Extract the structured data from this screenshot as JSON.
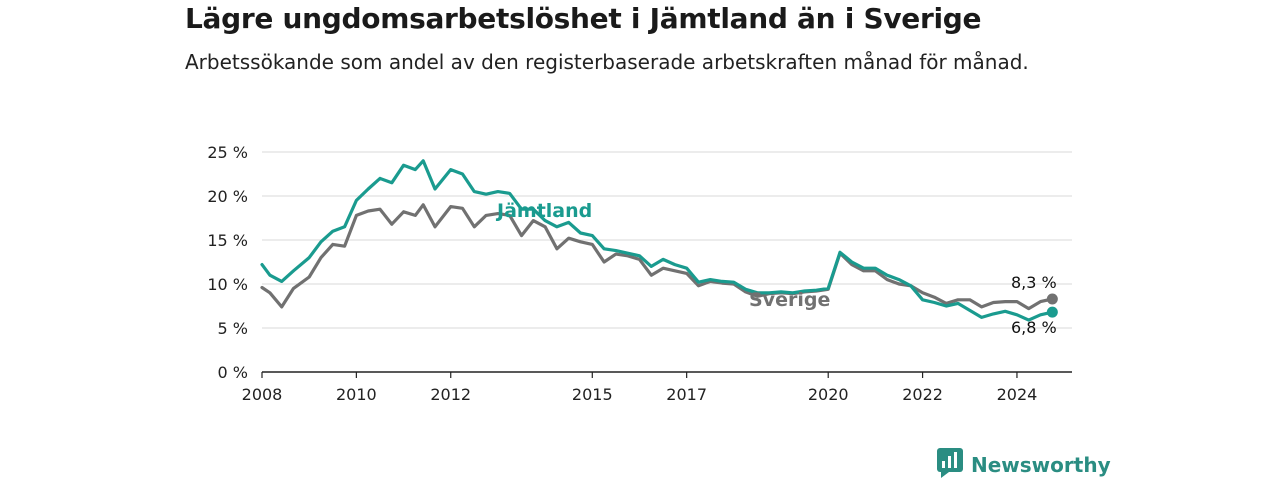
{
  "header": {
    "title": "Lägre ungdomsarbetslöshet i Jämtland än i Sverige",
    "subtitle": "Arbetssökande som andel av den registerbaserade arbetskraften månad för månad."
  },
  "brand": {
    "name": "Newsworthy",
    "icon": "newsworthy-logo-icon"
  },
  "colors": {
    "jamtland": "#1a9b8f",
    "sverige": "#717171",
    "grid": "#d9d9d9",
    "axis": "#222222"
  },
  "chart_data": {
    "type": "line",
    "title": "Lägre ungdomsarbetslöshet i Jämtland än i Sverige",
    "subtitle": "Arbetssökande som andel av den registerbaserade arbetskraften månad för månad.",
    "xlabel": "",
    "ylabel": "",
    "xlim": [
      "2008-01",
      "2025-03"
    ],
    "ylim": [
      0,
      25
    ],
    "y_ticks": [
      0,
      5,
      10,
      15,
      20,
      25
    ],
    "y_tick_labels": [
      "0 %",
      "5 %",
      "10 %",
      "15 %",
      "20 %",
      "25 %"
    ],
    "x_ticks": [
      "2008-01",
      "2010-01",
      "2012-01",
      "2015-01",
      "2017-01",
      "2020-01",
      "2022-01",
      "2024-01"
    ],
    "x_tick_labels": [
      "2008",
      "2010",
      "2012",
      "2015",
      "2017",
      "2020",
      "2022",
      "2024"
    ],
    "grid": "horizontal",
    "series": [
      {
        "name": "Jämtland",
        "end_label": "6,8 %",
        "points": [
          [
            "2008-01",
            12.2
          ],
          [
            "2008-03",
            11.0
          ],
          [
            "2008-06",
            10.3
          ],
          [
            "2008-09",
            11.5
          ],
          [
            "2009-01",
            13.0
          ],
          [
            "2009-04",
            14.8
          ],
          [
            "2009-07",
            16.0
          ],
          [
            "2009-10",
            16.5
          ],
          [
            "2010-01",
            19.5
          ],
          [
            "2010-04",
            20.8
          ],
          [
            "2010-07",
            22.0
          ],
          [
            "2010-10",
            21.5
          ],
          [
            "2011-01",
            23.5
          ],
          [
            "2011-04",
            23.0
          ],
          [
            "2011-06",
            24.0
          ],
          [
            "2011-09",
            20.8
          ],
          [
            "2012-01",
            23.0
          ],
          [
            "2012-04",
            22.5
          ],
          [
            "2012-07",
            20.5
          ],
          [
            "2012-10",
            20.2
          ],
          [
            "2013-01",
            20.5
          ],
          [
            "2013-04",
            20.3
          ],
          [
            "2013-07",
            18.5
          ],
          [
            "2013-10",
            18.5
          ],
          [
            "2014-01",
            17.2
          ],
          [
            "2014-04",
            16.5
          ],
          [
            "2014-07",
            17.0
          ],
          [
            "2014-10",
            15.8
          ],
          [
            "2015-01",
            15.5
          ],
          [
            "2015-04",
            14.0
          ],
          [
            "2015-07",
            13.8
          ],
          [
            "2015-10",
            13.5
          ],
          [
            "2016-01",
            13.2
          ],
          [
            "2016-04",
            12.0
          ],
          [
            "2016-07",
            12.8
          ],
          [
            "2016-10",
            12.2
          ],
          [
            "2017-01",
            11.8
          ],
          [
            "2017-04",
            10.2
          ],
          [
            "2017-07",
            10.5
          ],
          [
            "2017-10",
            10.3
          ],
          [
            "2018-01",
            10.2
          ],
          [
            "2018-04",
            9.4
          ],
          [
            "2018-07",
            9.0
          ],
          [
            "2018-10",
            9.0
          ],
          [
            "2019-01",
            9.1
          ],
          [
            "2019-04",
            9.0
          ],
          [
            "2019-07",
            9.2
          ],
          [
            "2019-10",
            9.3
          ],
          [
            "2020-01",
            9.5
          ],
          [
            "2020-04",
            13.6
          ],
          [
            "2020-07",
            12.5
          ],
          [
            "2020-10",
            11.8
          ],
          [
            "2021-01",
            11.8
          ],
          [
            "2021-04",
            11.0
          ],
          [
            "2021-07",
            10.5
          ],
          [
            "2021-10",
            9.8
          ],
          [
            "2022-01",
            8.2
          ],
          [
            "2022-04",
            7.9
          ],
          [
            "2022-07",
            7.5
          ],
          [
            "2022-10",
            7.8
          ],
          [
            "2023-01",
            7.0
          ],
          [
            "2023-04",
            6.2
          ],
          [
            "2023-07",
            6.6
          ],
          [
            "2023-10",
            6.9
          ],
          [
            "2024-01",
            6.5
          ],
          [
            "2024-04",
            5.9
          ],
          [
            "2024-07",
            6.5
          ],
          [
            "2024-10",
            6.8
          ]
        ]
      },
      {
        "name": "Sverige",
        "end_label": "8,3 %",
        "points": [
          [
            "2008-01",
            9.6
          ],
          [
            "2008-03",
            9.0
          ],
          [
            "2008-06",
            7.4
          ],
          [
            "2008-09",
            9.5
          ],
          [
            "2009-01",
            10.8
          ],
          [
            "2009-04",
            13.0
          ],
          [
            "2009-07",
            14.5
          ],
          [
            "2009-10",
            14.3
          ],
          [
            "2010-01",
            17.8
          ],
          [
            "2010-04",
            18.3
          ],
          [
            "2010-07",
            18.5
          ],
          [
            "2010-10",
            16.8
          ],
          [
            "2011-01",
            18.2
          ],
          [
            "2011-04",
            17.8
          ],
          [
            "2011-06",
            19.0
          ],
          [
            "2011-09",
            16.5
          ],
          [
            "2012-01",
            18.8
          ],
          [
            "2012-04",
            18.6
          ],
          [
            "2012-07",
            16.5
          ],
          [
            "2012-10",
            17.8
          ],
          [
            "2013-01",
            18.0
          ],
          [
            "2013-04",
            17.8
          ],
          [
            "2013-07",
            15.5
          ],
          [
            "2013-10",
            17.2
          ],
          [
            "2014-01",
            16.5
          ],
          [
            "2014-04",
            14.0
          ],
          [
            "2014-07",
            15.2
          ],
          [
            "2014-10",
            14.8
          ],
          [
            "2015-01",
            14.5
          ],
          [
            "2015-04",
            12.5
          ],
          [
            "2015-07",
            13.4
          ],
          [
            "2015-10",
            13.2
          ],
          [
            "2016-01",
            12.8
          ],
          [
            "2016-04",
            11.0
          ],
          [
            "2016-07",
            11.8
          ],
          [
            "2016-10",
            11.5
          ],
          [
            "2017-01",
            11.2
          ],
          [
            "2017-04",
            9.8
          ],
          [
            "2017-07",
            10.3
          ],
          [
            "2017-10",
            10.1
          ],
          [
            "2018-01",
            10.0
          ],
          [
            "2018-04",
            9.1
          ],
          [
            "2018-07",
            8.6
          ],
          [
            "2018-10",
            8.9
          ],
          [
            "2019-01",
            9.0
          ],
          [
            "2019-04",
            8.9
          ],
          [
            "2019-07",
            9.1
          ],
          [
            "2019-10",
            9.2
          ],
          [
            "2020-01",
            9.4
          ],
          [
            "2020-04",
            13.5
          ],
          [
            "2020-07",
            12.2
          ],
          [
            "2020-10",
            11.5
          ],
          [
            "2021-01",
            11.5
          ],
          [
            "2021-04",
            10.5
          ],
          [
            "2021-07",
            10.0
          ],
          [
            "2021-10",
            9.8
          ],
          [
            "2022-01",
            9.0
          ],
          [
            "2022-04",
            8.5
          ],
          [
            "2022-07",
            7.8
          ],
          [
            "2022-10",
            8.2
          ],
          [
            "2023-01",
            8.2
          ],
          [
            "2023-04",
            7.4
          ],
          [
            "2023-07",
            7.9
          ],
          [
            "2023-10",
            8.0
          ],
          [
            "2024-01",
            8.0
          ],
          [
            "2024-04",
            7.2
          ],
          [
            "2024-07",
            8.0
          ],
          [
            "2024-10",
            8.3
          ]
        ]
      }
    ]
  }
}
